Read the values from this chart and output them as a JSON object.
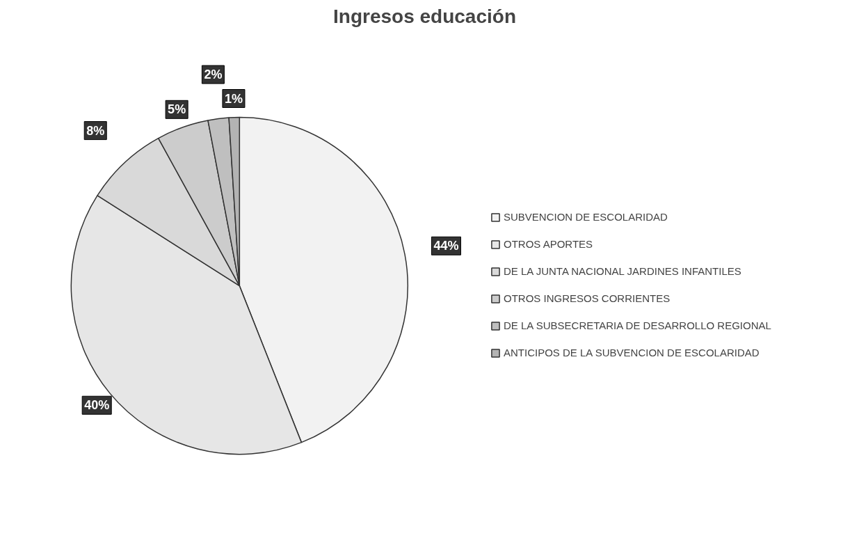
{
  "chart_data": {
    "type": "pie",
    "title": "Ingresos educación",
    "categories": [
      "SUBVENCION DE ESCOLARIDAD",
      "OTROS APORTES",
      "DE LA JUNTA NACIONAL JARDINES INFANTILES",
      "OTROS INGRESOS CORRIENTES",
      "DE LA SUBSECRETARIA DE DESARROLLO REGIONAL",
      "ANTICIPOS DE LA SUBVENCION DE ESCOLARIDAD"
    ],
    "values": [
      44,
      40,
      8,
      5,
      2,
      1
    ],
    "colors": [
      "#f2f2f2",
      "#e6e6e6",
      "#d9d9d9",
      "#cccccc",
      "#bfbfbf",
      "#b3b3b3"
    ],
    "value_labels": [
      "44%",
      "40%",
      "8%",
      "5%",
      "2%",
      "1%"
    ],
    "legend": "right"
  }
}
